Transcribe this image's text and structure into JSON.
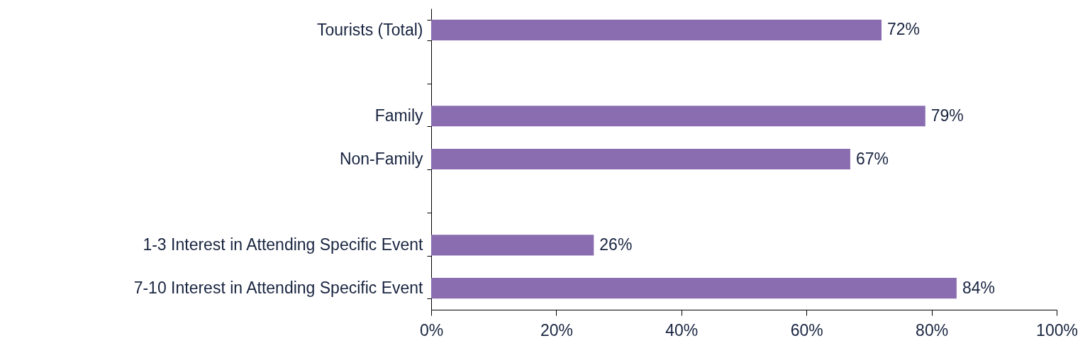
{
  "chart_data": {
    "type": "bar",
    "orientation": "horizontal",
    "categories": [
      "Tourists (Total)",
      null,
      "Family",
      "Non-Family",
      null,
      "1-3 Interest in Attending Specific Event",
      "7-10 Interest in Attending Specific Event"
    ],
    "values": [
      72,
      null,
      79,
      67,
      null,
      26,
      84
    ],
    "value_labels": [
      "72%",
      null,
      "79%",
      "67%",
      null,
      "26%",
      "84%"
    ],
    "color": "#8a6db0",
    "xlim": [
      0,
      100
    ],
    "xticks": [
      {
        "value": 0,
        "label": "0%"
      },
      {
        "value": 20,
        "label": "20%"
      },
      {
        "value": 40,
        "label": "40%"
      },
      {
        "value": 60,
        "label": "60%"
      },
      {
        "value": 80,
        "label": "80%"
      },
      {
        "value": 100,
        "label": "100%"
      }
    ],
    "grid": false
  }
}
